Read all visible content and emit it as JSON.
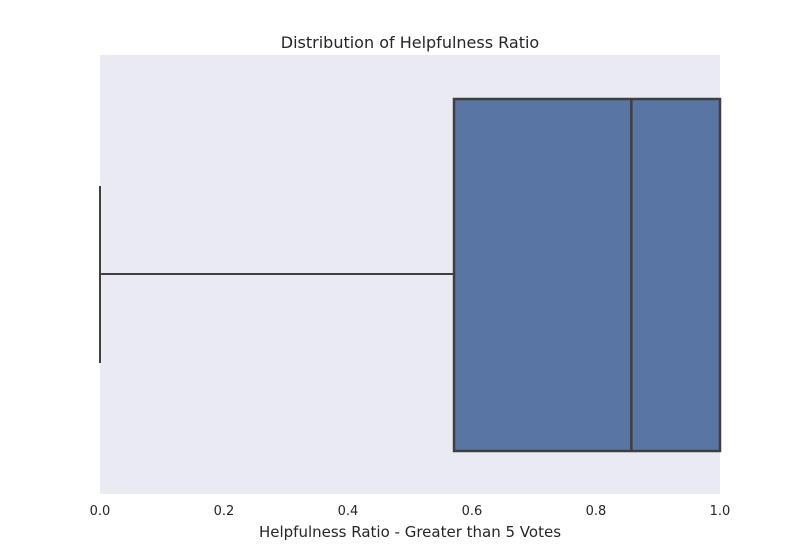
{
  "chart_data": {
    "type": "box",
    "title": "Distribution of Helpfulness Ratio",
    "xlabel": "Helpfulness Ratio - Greater than 5 Votes",
    "ylabel": "",
    "orientation": "horizontal",
    "xlim": [
      0.0,
      1.0
    ],
    "xticks": [
      "0.0",
      "0.2",
      "0.4",
      "0.6",
      "0.8",
      "1.0"
    ],
    "grid": false,
    "box": {
      "whisker_low": 0.0,
      "q1": 0.571,
      "median": 0.857,
      "q3": 1.0,
      "whisker_high": 1.0
    },
    "colors": {
      "box_fill": "#5975a4",
      "box_edge": "#3f3f3f",
      "plot_background": "#eaeaf2"
    }
  }
}
